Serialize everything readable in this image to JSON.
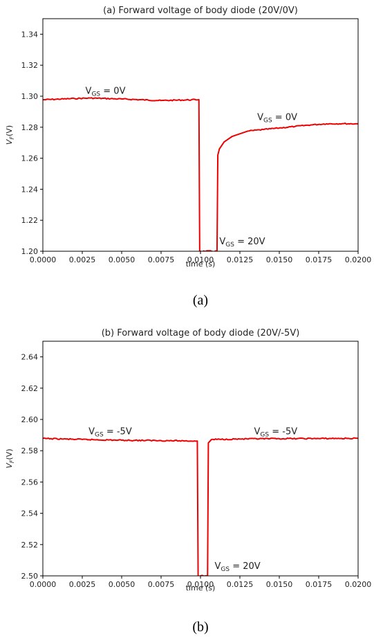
{
  "chart_data": [
    {
      "type": "line",
      "title": "(a) Forward voltage of body diode (20V/0V)",
      "xlabel": "time (s)",
      "ylabel": "V_F(V)",
      "caption": "(a)",
      "xlim": [
        0.0,
        0.02
      ],
      "ylim": [
        1.2,
        1.35
      ],
      "x_ticks": [
        "0.0000",
        "0.0025",
        "0.0050",
        "0.0075",
        "0.0100",
        "0.0125",
        "0.0150",
        "0.0175",
        "0.0200"
      ],
      "y_ticks": [
        "1.20",
        "1.22",
        "1.24",
        "1.26",
        "1.28",
        "1.30",
        "1.32",
        "1.34"
      ],
      "series": [
        {
          "color": "#ee0000",
          "x": [
            0.0,
            0.002,
            0.003,
            0.005,
            0.0075,
            0.0099,
            0.00995,
            0.01105,
            0.0111,
            0.0112,
            0.0115,
            0.012,
            0.013,
            0.014,
            0.015,
            0.016,
            0.017,
            0.018,
            0.019,
            0.02
          ],
          "y": [
            1.2977,
            1.2985,
            1.2988,
            1.2982,
            1.2972,
            1.2978,
            1.2,
            1.2,
            1.262,
            1.266,
            1.2705,
            1.274,
            1.2775,
            1.2785,
            1.2795,
            1.2805,
            1.2815,
            1.2822,
            1.2823,
            1.2822
          ]
        }
      ],
      "annotations": [
        {
          "base": "V",
          "sub": "GS",
          "tail": " = 0V",
          "x": 0.0027,
          "y": 1.3015
        },
        {
          "base": "V",
          "sub": "GS",
          "tail": " = 0V",
          "x": 0.0136,
          "y": 1.2845
        },
        {
          "base": "V",
          "sub": "GS",
          "tail": " = 20V",
          "x": 0.0112,
          "y": 1.2045
        }
      ]
    },
    {
      "type": "line",
      "title": "(b) Forward voltage of body diode (20V/-5V)",
      "xlabel": "time (s)",
      "ylabel": "V_F(V)",
      "caption": "(b)",
      "xlim": [
        0.0,
        0.02
      ],
      "ylim": [
        2.5,
        2.65
      ],
      "x_ticks": [
        "0.0000",
        "0.0025",
        "0.0050",
        "0.0075",
        "0.0100",
        "0.0125",
        "0.0150",
        "0.0175",
        "0.0200"
      ],
      "y_ticks": [
        "2.50",
        "2.52",
        "2.54",
        "2.56",
        "2.58",
        "2.60",
        "2.62",
        "2.64"
      ],
      "series": [
        {
          "color": "#ee0000",
          "x": [
            0.0,
            0.0025,
            0.005,
            0.0075,
            0.0098,
            0.00985,
            0.01045,
            0.0105,
            0.0107,
            0.0125,
            0.015,
            0.0175,
            0.02
          ],
          "y": [
            2.5878,
            2.5872,
            2.5867,
            2.5865,
            2.5862,
            2.5,
            2.5,
            2.585,
            2.5872,
            2.5875,
            2.5877,
            2.5878,
            2.5879
          ]
        }
      ],
      "annotations": [
        {
          "base": "V",
          "sub": "GS",
          "tail": " = -5V",
          "x": 0.0029,
          "y": 2.5905
        },
        {
          "base": "V",
          "sub": "GS",
          "tail": " = -5V",
          "x": 0.0134,
          "y": 2.5905
        },
        {
          "base": "V",
          "sub": "GS",
          "tail": " = 20V",
          "x": 0.0109,
          "y": 2.5045
        }
      ]
    }
  ]
}
